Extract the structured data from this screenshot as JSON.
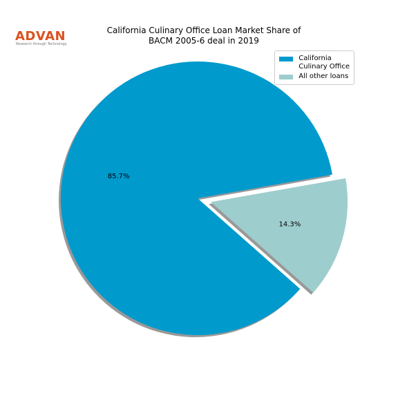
{
  "logo": {
    "name": "ADVAN",
    "tagline": "Research through Technology"
  },
  "chart_data": {
    "type": "pie",
    "title": "California Culinary Office Loan Market Share of\nBACM 2005-6 deal in 2019",
    "categories": [
      "California\nCulinary Office",
      "All other loans"
    ],
    "values": [
      85.7,
      14.3
    ],
    "value_labels": [
      "85.7%",
      "14.3%"
    ],
    "colors": [
      "#009acd",
      "#9ecdcd"
    ],
    "legend": "upper right"
  }
}
